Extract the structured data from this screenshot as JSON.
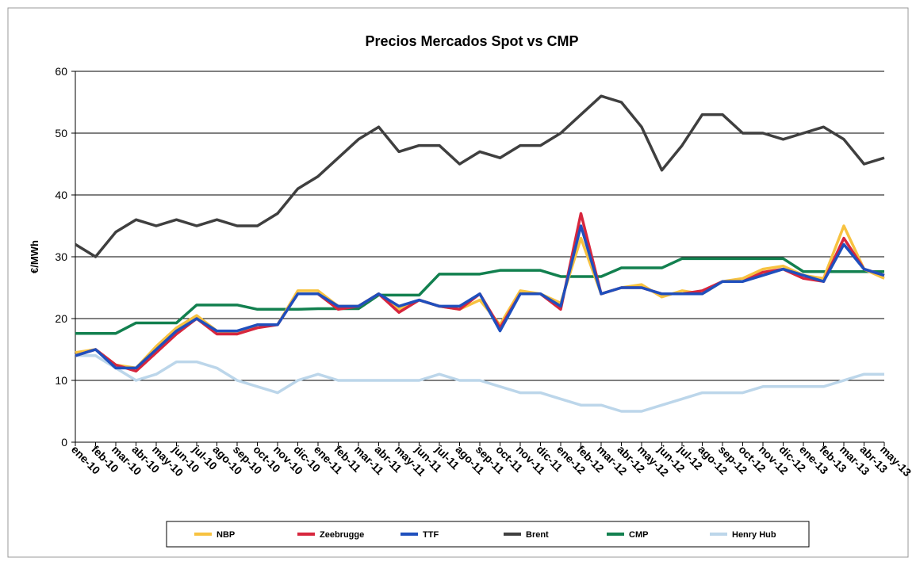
{
  "chart_data": {
    "type": "line",
    "title": "Precios  Mercados Spot vs CMP",
    "y_label": "€/MWh",
    "categories": [
      "ene-10",
      "feb-10",
      "mar-10",
      "abr-10",
      "may-10",
      "jun-10",
      "jul-10",
      "ago-10",
      "sep-10",
      "oct-10",
      "nov-10",
      "dic-10",
      "ene-11",
      "feb-11",
      "mar-11",
      "abr-11",
      "may-11",
      "jun-11",
      "jul-11",
      "ago-11",
      "sep-11",
      "oct-11",
      "nov-11",
      "dic-11",
      "ene-12",
      "feb-12",
      "mar-12",
      "abr-12",
      "may-12",
      "jun-12",
      "jul-12",
      "ago-12",
      "sep-12",
      "oct-12",
      "nov-12",
      "dic-12",
      "ene-13",
      "feb-13",
      "mar-13",
      "abr-13",
      "may-13"
    ],
    "ylim": [
      0,
      60
    ],
    "yticks": [
      0,
      10,
      20,
      30,
      40,
      50,
      60
    ],
    "grid": true,
    "legend": "bottom",
    "series": [
      {
        "name": "NBP",
        "color": "#f7c240",
        "values": [
          14.5,
          15,
          12.5,
          12,
          15.5,
          18.5,
          20.5,
          18,
          17.5,
          19,
          19,
          24.5,
          24.5,
          22,
          22,
          24,
          21.5,
          23,
          22,
          21.5,
          23,
          19,
          24.5,
          24,
          22.5,
          33,
          24,
          25,
          25.5,
          23.5,
          24.5,
          24,
          26,
          26.5,
          28,
          28.5,
          27,
          26.5,
          35,
          28,
          26.5
        ]
      },
      {
        "name": "Zeebrugge",
        "color": "#d7263d",
        "values": [
          14,
          15,
          12.5,
          11.5,
          14.5,
          17.5,
          20,
          17.5,
          17.5,
          18.5,
          19,
          24,
          24,
          21.5,
          22,
          24,
          21,
          23,
          22,
          21.5,
          24,
          18.5,
          24,
          24,
          21.5,
          37,
          24,
          25,
          25,
          24,
          24,
          24.5,
          26,
          26,
          27.5,
          28,
          26.5,
          26,
          33,
          28,
          27
        ]
      },
      {
        "name": "TTF",
        "color": "#1f4fbd",
        "values": [
          14,
          15,
          12,
          12,
          15,
          18,
          20,
          18,
          18,
          19,
          19,
          24,
          24,
          22,
          22,
          24,
          22,
          23,
          22,
          22,
          24,
          18,
          24,
          24,
          22,
          35,
          24,
          25,
          25,
          24,
          24,
          24,
          26,
          26,
          27,
          28,
          27,
          26,
          32,
          28,
          27
        ]
      },
      {
        "name": "Brent",
        "color": "#3f3f3f",
        "values": [
          32,
          30,
          34,
          36,
          35,
          36,
          35,
          36,
          35,
          35,
          37,
          41,
          43,
          46,
          49,
          51,
          47,
          48,
          48,
          45,
          47,
          46,
          48,
          48,
          50,
          53,
          56,
          55,
          51,
          44,
          48,
          53,
          53,
          50,
          50,
          49,
          50,
          51,
          49,
          45,
          46
        ]
      },
      {
        "name": "CMP",
        "color": "#12804f",
        "values": [
          17.6,
          17.6,
          17.6,
          19.3,
          19.3,
          19.3,
          22.2,
          22.2,
          22.2,
          21.5,
          21.5,
          21.5,
          21.6,
          21.6,
          21.6,
          23.8,
          23.8,
          23.8,
          27.2,
          27.2,
          27.2,
          27.8,
          27.8,
          27.8,
          26.8,
          26.8,
          26.8,
          28.2,
          28.2,
          28.2,
          29.7,
          29.7,
          29.7,
          29.7,
          29.7,
          29.7,
          27.6,
          27.6,
          27.6,
          27.6,
          27.6
        ]
      },
      {
        "name": "Henry Hub",
        "color": "#bcd6ea",
        "values": [
          14,
          14,
          12,
          10,
          11,
          13,
          13,
          12,
          10,
          9,
          8,
          10,
          11,
          10,
          10,
          10,
          10,
          10,
          11,
          10,
          10,
          9,
          8,
          8,
          7,
          6,
          6,
          5,
          5,
          6,
          7,
          8,
          8,
          8,
          9,
          9,
          9,
          9,
          10,
          11,
          11
        ]
      }
    ]
  }
}
